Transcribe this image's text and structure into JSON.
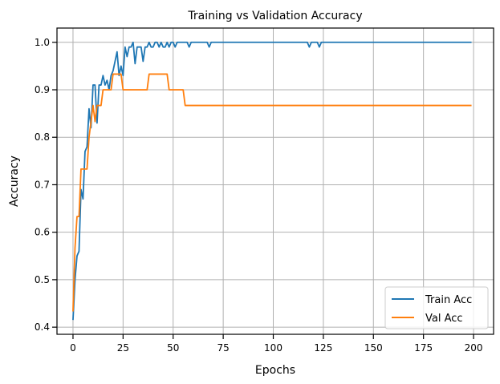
{
  "chart_data": {
    "type": "line",
    "title": "Training vs Validation Accuracy",
    "xlabel": "Epochs",
    "ylabel": "Accuracy",
    "xlim": [
      -8,
      210
    ],
    "ylim": [
      0.385,
      1.03
    ],
    "xticks": [
      0,
      25,
      50,
      75,
      100,
      125,
      150,
      175,
      200
    ],
    "yticks": [
      0.4,
      0.5,
      0.6,
      0.7,
      0.8,
      0.9,
      1.0
    ],
    "grid": true,
    "legend_position": "bottom-right",
    "series": [
      {
        "name": "Train Acc",
        "color": "#1f77b4",
        "x": [
          0,
          1,
          2,
          3,
          4,
          5,
          6,
          7,
          8,
          9,
          10,
          11,
          12,
          13,
          14,
          15,
          16,
          17,
          18,
          19,
          20,
          21,
          22,
          23,
          24,
          25,
          26,
          27,
          28,
          29,
          30,
          31,
          32,
          33,
          34,
          35,
          36,
          37,
          38,
          39,
          40,
          41,
          42,
          43,
          44,
          45,
          46,
          47,
          48,
          49,
          50,
          51,
          52,
          53,
          54,
          55,
          56,
          57,
          58,
          59,
          60,
          61,
          62,
          63,
          64,
          65,
          66,
          67,
          68,
          69,
          70,
          80,
          90,
          100,
          110,
          116,
          117,
          118,
          119,
          120,
          121,
          122,
          123,
          124,
          130,
          140,
          150,
          160,
          170,
          180,
          190,
          199
        ],
        "y": [
          0.415,
          0.5,
          0.55,
          0.56,
          0.69,
          0.67,
          0.77,
          0.78,
          0.86,
          0.82,
          0.91,
          0.91,
          0.83,
          0.91,
          0.91,
          0.93,
          0.91,
          0.92,
          0.9,
          0.93,
          0.94,
          0.96,
          0.98,
          0.93,
          0.95,
          0.93,
          0.99,
          0.97,
          0.99,
          0.99,
          1.0,
          0.955,
          0.99,
          0.99,
          0.99,
          0.96,
          0.99,
          0.99,
          1.0,
          0.99,
          0.99,
          1.0,
          1.0,
          0.99,
          1.0,
          0.99,
          0.99,
          1.0,
          0.99,
          1.0,
          1.0,
          0.99,
          1.0,
          1.0,
          1.0,
          1.0,
          1.0,
          1.0,
          0.99,
          1.0,
          1.0,
          1.0,
          1.0,
          1.0,
          1.0,
          1.0,
          1.0,
          1.0,
          0.99,
          1.0,
          1.0,
          1.0,
          1.0,
          1.0,
          1.0,
          1.0,
          1.0,
          0.99,
          1.0,
          1.0,
          1.0,
          1.0,
          0.99,
          1.0,
          1.0,
          1.0,
          1.0,
          1.0,
          1.0,
          1.0,
          1.0,
          1.0
        ]
      },
      {
        "name": "Val Acc",
        "color": "#ff7f0e",
        "x": [
          0,
          1,
          2,
          3,
          4,
          5,
          6,
          7,
          8,
          9,
          10,
          11,
          12,
          13,
          14,
          15,
          16,
          17,
          18,
          19,
          20,
          21,
          22,
          23,
          24,
          25,
          26,
          27,
          28,
          29,
          30,
          31,
          32,
          33,
          34,
          35,
          36,
          37,
          38,
          39,
          40,
          41,
          42,
          43,
          44,
          45,
          46,
          47,
          48,
          49,
          50,
          51,
          52,
          53,
          54,
          55,
          56,
          57,
          60,
          80,
          100,
          120,
          140,
          160,
          180,
          199
        ],
        "y": [
          0.433,
          0.567,
          0.633,
          0.633,
          0.733,
          0.733,
          0.733,
          0.733,
          0.8,
          0.833,
          0.867,
          0.833,
          0.867,
          0.867,
          0.867,
          0.9,
          0.9,
          0.9,
          0.9,
          0.9,
          0.933,
          0.933,
          0.933,
          0.933,
          0.933,
          0.9,
          0.9,
          0.9,
          0.9,
          0.9,
          0.9,
          0.9,
          0.9,
          0.9,
          0.9,
          0.9,
          0.9,
          0.9,
          0.933,
          0.933,
          0.933,
          0.933,
          0.933,
          0.933,
          0.933,
          0.933,
          0.933,
          0.933,
          0.9,
          0.9,
          0.9,
          0.9,
          0.9,
          0.9,
          0.9,
          0.9,
          0.867,
          0.867,
          0.867,
          0.867,
          0.867,
          0.867,
          0.867,
          0.867,
          0.867,
          0.867
        ]
      }
    ]
  }
}
